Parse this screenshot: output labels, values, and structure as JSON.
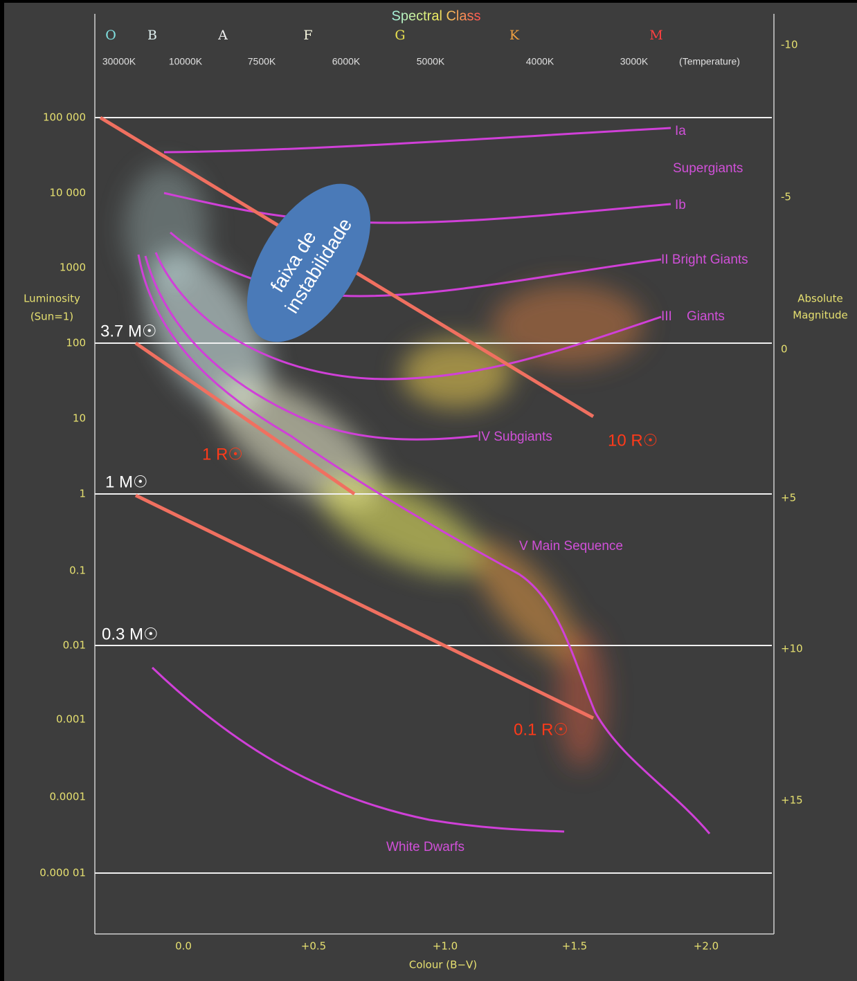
{
  "title": "Spectral Class",
  "spectral_classes": [
    "O",
    "B",
    "A",
    "F",
    "G",
    "K",
    "M"
  ],
  "temperatures": [
    "30000K",
    "10000K",
    "7500K",
    "6000K",
    "5000K",
    "4000K",
    "3000K",
    "(Temperature)"
  ],
  "left_axis": {
    "title": [
      "Luminosity",
      "(Sun=1)"
    ],
    "ticks": [
      "100 000",
      "10 000",
      "1000",
      "100",
      "10",
      "1",
      "0.1",
      "0.01",
      "0.001",
      "0.0001",
      "0.000 01"
    ]
  },
  "right_axis": {
    "title": [
      "Absolute",
      "Magnitude"
    ],
    "ticks": [
      "-10",
      "-5",
      "0",
      "+5",
      "+10",
      "+15"
    ]
  },
  "bottom_axis": {
    "title": "Colour (B−V)",
    "ticks": [
      "0.0",
      "+0.5",
      "+1.0",
      "+1.5",
      "+2.0"
    ]
  },
  "classes": [
    "Ia",
    "Supergiants",
    "Ib",
    "II Bright Giants",
    "III    Giants",
    "IV Subgiants",
    "V Main Sequence",
    "White Dwarfs"
  ],
  "radius_labels": [
    "1 R☉",
    "10 R☉",
    "0.1 R☉"
  ],
  "mass_labels": [
    "3.7 M☉",
    "1 M☉",
    "0.3 M☉"
  ],
  "instability_strip": [
    "faixa de",
    "instabilidade"
  ]
}
